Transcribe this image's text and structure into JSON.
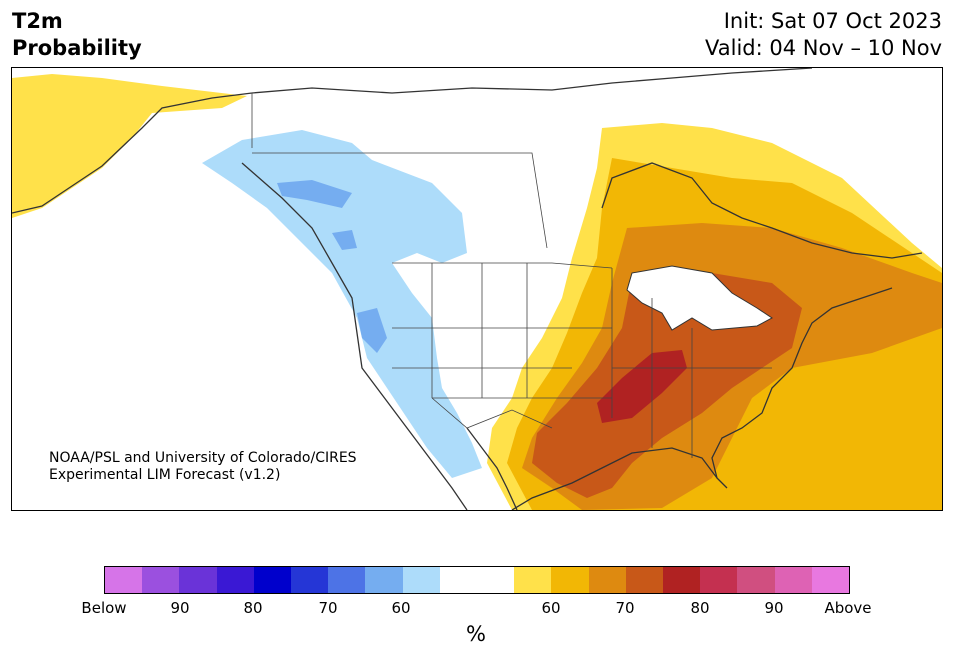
{
  "header": {
    "variable": "T2m",
    "product": "Probability",
    "init": "Init: Sat 07 Oct 2023",
    "valid": "Valid: 04 Nov – 10 Nov"
  },
  "credit": {
    "line1": "NOAA/PSL and University of Colorado/CIRES",
    "line2": "Experimental LIM Forecast (v1.2)"
  },
  "colorbar": {
    "unit": "%",
    "colors": [
      "#d674e8",
      "#9b50df",
      "#6a33d8",
      "#3a18d4",
      "#0000cc",
      "#2536d6",
      "#4d73e6",
      "#75adf0",
      "#addcfa",
      "#ffffff",
      "#ffffff",
      "#ffe14a",
      "#f2b705",
      "#de8a10",
      "#c85818",
      "#b02222",
      "#c43050",
      "#d04f80",
      "#de62b4",
      "#e878e0"
    ],
    "ticks": [
      "Below",
      "90",
      "80",
      "70",
      "60",
      "60",
      "70",
      "80",
      "90",
      "Above"
    ]
  },
  "map_colors": {
    "above_light": "#ffe14a",
    "above_60": "#f2b705",
    "above_65": "#de8a10",
    "above_70": "#c85818",
    "above_75": "#b02222",
    "below_light": "#addcfa",
    "below_60": "#75adf0",
    "coast": "#333333"
  }
}
